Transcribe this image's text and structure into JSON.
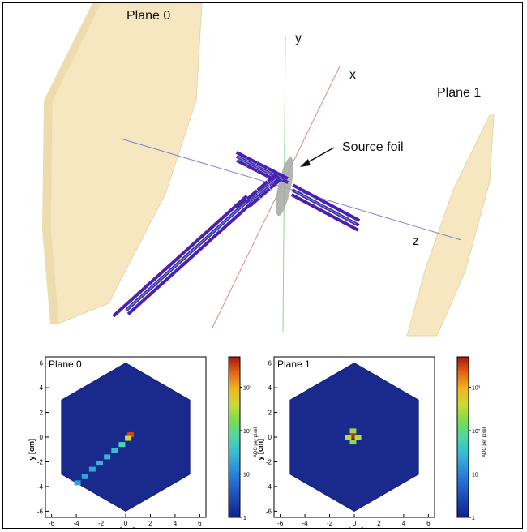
{
  "scene": {
    "plane0_label": "Plane 0",
    "plane1_label": "Plane 1",
    "axis_x_label": "x",
    "axis_y_label": "y",
    "axis_z_label": "z",
    "source_foil_label": "Source foil",
    "colors": {
      "plane": "#f6e7c1",
      "plane_edge": "#e8d6a8",
      "track": "#4b1fb0",
      "track_core": "#37c8b4",
      "axis_x": "#d98a8a",
      "axis_y": "#8fd88f",
      "axis_z": "#8080d8",
      "foil": "#a7a7a7"
    }
  },
  "chart_data": [
    {
      "type": "heatmap",
      "title": "Plane 0",
      "xlabel": "x [cm]",
      "ylabel": "y [cm]",
      "colorbar_label": "ADC per pixel",
      "xlim": [
        -6.5,
        6.5
      ],
      "ylim": [
        -6.5,
        6.5
      ],
      "x_ticks": [
        -6,
        -4,
        -2,
        0,
        2,
        4,
        6
      ],
      "y_ticks": [
        -6,
        -4,
        -2,
        0,
        2,
        4,
        6
      ],
      "colorbar_scale": "log",
      "colorbar_range": [
        1,
        5000
      ],
      "colorbar_ticks": [
        "1",
        "10",
        "10²",
        "10³"
      ],
      "detector_shape": "hexagon",
      "detector_radius_cm": 6,
      "hits": [
        {
          "x": 0.4,
          "y": 0.2,
          "v": 3000
        },
        {
          "x": 0.2,
          "y": -0.1,
          "v": 400
        },
        {
          "x": -0.3,
          "y": -0.6,
          "v": 60
        },
        {
          "x": -0.9,
          "y": -1.1,
          "v": 30
        },
        {
          "x": -1.5,
          "y": -1.6,
          "v": 25
        },
        {
          "x": -2.1,
          "y": -2.1,
          "v": 25
        },
        {
          "x": -2.7,
          "y": -2.6,
          "v": 20
        },
        {
          "x": -3.3,
          "y": -3.2,
          "v": 20
        },
        {
          "x": -3.9,
          "y": -3.7,
          "v": 18
        }
      ]
    },
    {
      "type": "heatmap",
      "title": "Plane 1",
      "xlabel": "x [cm]",
      "ylabel": "y [cm]",
      "colorbar_label": "ADC per pixel",
      "xlim": [
        -6.5,
        6.5
      ],
      "ylim": [
        -6.5,
        6.5
      ],
      "x_ticks": [
        -6,
        -4,
        -2,
        0,
        2,
        4,
        6
      ],
      "y_ticks": [
        -6,
        -4,
        -2,
        0,
        2,
        4,
        6
      ],
      "colorbar_scale": "log",
      "colorbar_range": [
        1,
        5000
      ],
      "colorbar_ticks": [
        "1",
        "10",
        "10²",
        "10³"
      ],
      "detector_shape": "hexagon",
      "detector_radius_cm": 6,
      "hits": [
        {
          "x": -0.1,
          "y": 0.1,
          "v": 4000
        },
        {
          "x": -0.5,
          "y": 0.0,
          "v": 300
        },
        {
          "x": 0.3,
          "y": 0.0,
          "v": 300
        },
        {
          "x": -0.1,
          "y": 0.5,
          "v": 200
        },
        {
          "x": -0.1,
          "y": -0.4,
          "v": 200
        }
      ]
    }
  ]
}
